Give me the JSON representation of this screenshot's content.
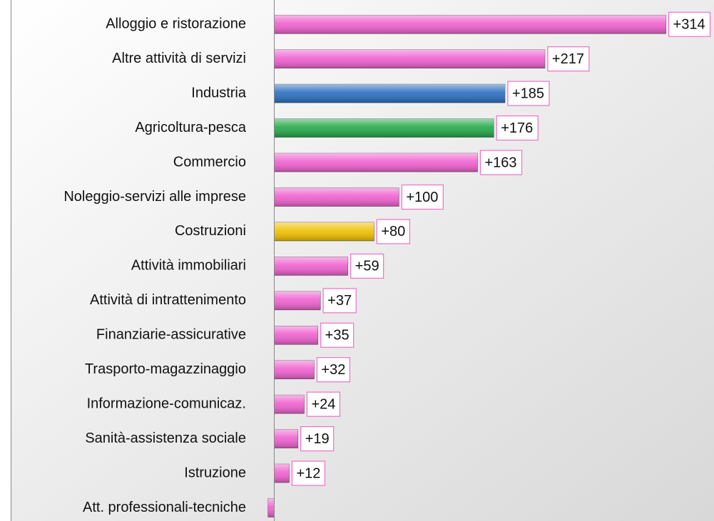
{
  "chart_data": {
    "type": "barh",
    "categories": [
      "Alloggio e ristorazione",
      "Altre attività di servizi",
      "Industria",
      "Agricoltura-pesca",
      "Commercio",
      "Noleggio-servizi alle imprese",
      "Costruzioni",
      "Attività immobiliari",
      "Attività di intrattenimento",
      "Finanziarie-assicurative",
      "Trasporto-magazzinaggio",
      "Informazione-comunicaz.",
      "Sanità-assistenza sociale",
      "Istruzione",
      "Att. professionali-tecniche"
    ],
    "values": [
      314,
      217,
      185,
      176,
      163,
      100,
      80,
      59,
      37,
      35,
      32,
      24,
      19,
      12,
      -5
    ],
    "value_labels": [
      "+314",
      "+217",
      "+185",
      "+176",
      "+163",
      "+100",
      "+80",
      "+59",
      "+37",
      "+35",
      "+32",
      "+24",
      "+19",
      "+12",
      null
    ],
    "colors": [
      "#f060d0",
      "#f060d0",
      "#2a6ec0",
      "#22a848",
      "#f060d0",
      "#f060d0",
      "#f0c000",
      "#f060d0",
      "#f060d0",
      "#f060d0",
      "#f060d0",
      "#f060d0",
      "#f060d0",
      "#f060d0",
      "#f060d0"
    ],
    "xlim": [
      -14,
      352
    ]
  }
}
